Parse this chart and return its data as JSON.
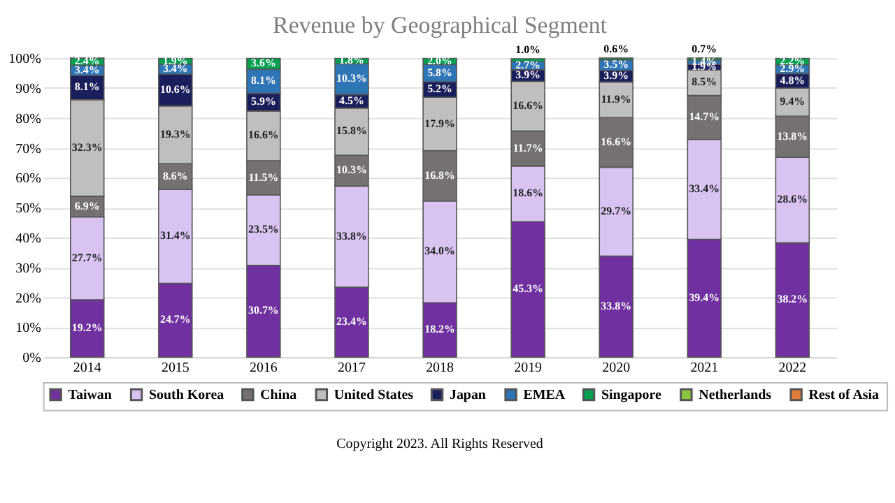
{
  "chart_data": {
    "type": "bar",
    "stacked": true,
    "title": "Revenue by Geographical Segment",
    "categories": [
      "2014",
      "2015",
      "2016",
      "2017",
      "2018",
      "2019",
      "2020",
      "2021",
      "2022"
    ],
    "series": [
      {
        "name": "Taiwan",
        "color": "#7030a0",
        "values": [
          19.2,
          24.7,
          30.7,
          23.4,
          18.2,
          45.3,
          33.8,
          39.4,
          38.2
        ],
        "value_labels": [
          "19.2%",
          "24.7%",
          "30.7%",
          "23.4%",
          "18.2%",
          "45.3%",
          "33.8%",
          "39.4%",
          "38.2%"
        ]
      },
      {
        "name": "South Korea",
        "color": "#d9c3f0",
        "values": [
          27.7,
          31.4,
          23.5,
          33.8,
          34.0,
          18.6,
          29.7,
          33.4,
          28.6
        ],
        "value_labels": [
          "27.7%",
          "31.4%",
          "23.5%",
          "33.8%",
          "34.0%",
          "18.6%",
          "29.7%",
          "33.4%",
          "28.6%"
        ]
      },
      {
        "name": "China",
        "color": "#767171",
        "values": [
          6.9,
          8.6,
          11.5,
          10.3,
          16.8,
          11.7,
          16.6,
          14.7,
          13.8
        ],
        "value_labels": [
          "6.9%",
          "8.6%",
          "11.5%",
          "10.3%",
          "16.8%",
          "11.7%",
          "16.6%",
          "14.7%",
          "13.8%"
        ]
      },
      {
        "name": "United States",
        "color": "#bfbfbf",
        "values": [
          32.3,
          19.3,
          16.6,
          15.8,
          17.9,
          16.6,
          11.9,
          8.5,
          9.4
        ],
        "value_labels": [
          "32.3%",
          "19.3%",
          "16.6%",
          "15.8%",
          "17.9%",
          "16.6%",
          "11.9%",
          "8.5%",
          "9.4%"
        ]
      },
      {
        "name": "Japan",
        "color": "#1a1f5c",
        "values": [
          8.1,
          10.6,
          5.9,
          4.5,
          5.2,
          3.9,
          3.9,
          1.9,
          4.8
        ],
        "value_labels": [
          "8.1%",
          "10.6%",
          "5.9%",
          "4.5%",
          "5.2%",
          "3.9%",
          "3.9%",
          "1.9%",
          "4.8%"
        ]
      },
      {
        "name": "EMEA",
        "color": "#2e75b6",
        "values": [
          3.4,
          3.4,
          8.1,
          10.3,
          5.8,
          2.7,
          3.5,
          1.4,
          2.9
        ],
        "value_labels": [
          "3.4%",
          "3.4%",
          "8.1%",
          "10.3%",
          "5.8%",
          "2.7%",
          "3.5%",
          "1.4%",
          "2.9%"
        ]
      },
      {
        "name": "Singapore",
        "color": "#00a050",
        "values": [
          2.4,
          1.9,
          3.6,
          1.8,
          2.0,
          1.0,
          0.6,
          0.7,
          2.2
        ],
        "value_labels": [
          "2.4%",
          "1.9%",
          "3.6%",
          "1.8%",
          "2.0%",
          "1.0%",
          "0.6%",
          "0.7%",
          "2.2%"
        ]
      },
      {
        "name": "Netherlands",
        "color": "#8cc63f",
        "values": [
          null,
          null,
          null,
          null,
          null,
          null,
          null,
          null,
          null
        ]
      },
      {
        "name": "Rest of Asia",
        "color": "#e07b39",
        "values": [
          null,
          null,
          null,
          null,
          null,
          null,
          null,
          null,
          null
        ]
      }
    ],
    "ylim": [
      0,
      100
    ],
    "yticks": [
      {
        "value": 0,
        "label": "0%"
      },
      {
        "value": 10,
        "label": "10%"
      },
      {
        "value": 20,
        "label": "20%"
      },
      {
        "value": 30,
        "label": "30%"
      },
      {
        "value": 40,
        "label": "40%"
      },
      {
        "value": 50,
        "label": "50%"
      },
      {
        "value": 60,
        "label": "60%"
      },
      {
        "value": 70,
        "label": "70%"
      },
      {
        "value": 80,
        "label": "80%"
      },
      {
        "value": 90,
        "label": "90%"
      },
      {
        "value": 100,
        "label": "100%"
      }
    ],
    "grid": "y",
    "legend": "bottom",
    "annotations": [
      "Copyright 2023. All Rights Reserved"
    ]
  }
}
